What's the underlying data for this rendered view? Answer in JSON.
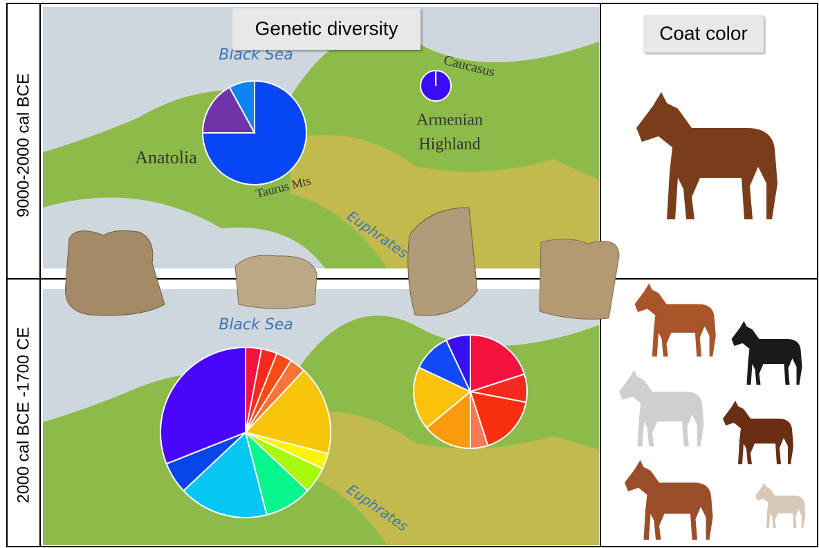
{
  "header": {
    "left_panel": "Genetic diversity",
    "right_panel": "Coat color"
  },
  "periods": [
    "9000-2000 cal BCE",
    "2000 cal BCE -1700 CE"
  ],
  "map_labels": {
    "black_sea_top": "Black Sea",
    "caucasus": "Caucasus",
    "armenian_1": "Armenian",
    "armenian_2": "Highland",
    "anatolia": "Anatolia",
    "taurus": "Taurus Mts",
    "euphrates_top": "Euphrates",
    "black_sea_bottom": "Black Sea",
    "euphrates_bottom": "Euphrates"
  },
  "pies": [
    {
      "values": [
        75,
        17,
        8
      ],
      "colors": [
        "#0646f5",
        "#7034a8",
        "#0d84f0"
      ]
    },
    {
      "values": [
        100
      ],
      "colors": [
        "#3a0cf2"
      ]
    },
    {
      "values": [
        3,
        3,
        3,
        3,
        17,
        3,
        5,
        9,
        17,
        6,
        31
      ],
      "colors": [
        "#f2133f",
        "#f52a1e",
        "#fb4a12",
        "#fa7338",
        "#f8c508",
        "#fbf504",
        "#a8f80b",
        "#07f58a",
        "#06c7f2",
        "#0646e8",
        "#4a05fb"
      ]
    },
    {
      "values": [
        20,
        8,
        17,
        5,
        14,
        18,
        11,
        7
      ],
      "colors": [
        "#f5123f",
        "#f52a1e",
        "#f83010",
        "#f97a52",
        "#fb9a0a",
        "#fbc20c",
        "#1248f5",
        "#3a10ee"
      ]
    }
  ]
}
